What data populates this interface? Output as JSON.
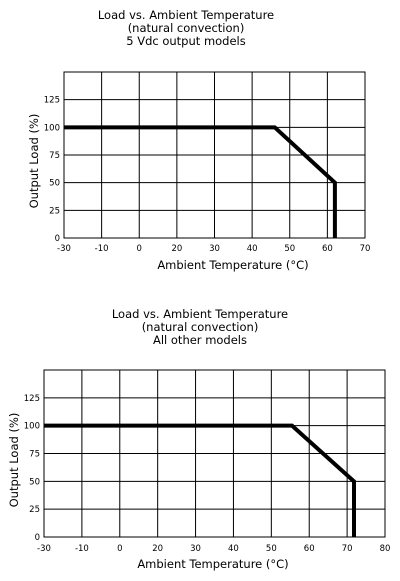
{
  "chart_data": [
    {
      "type": "line",
      "title": "Load vs. Ambient Temperature",
      "subtitle_1": "(natural convection)",
      "subtitle_2": "5 Vdc output models",
      "xlabel": "Ambient Temperature (°C)",
      "ylabel": "Output Load (%)",
      "xlim": [
        -30,
        70
      ],
      "ylim": [
        0,
        150
      ],
      "x_ticks": [
        "-30",
        "-10",
        "0",
        "20",
        "30",
        "40",
        "50",
        "60",
        "70"
      ],
      "y_ticks": [
        "0",
        "25",
        "50",
        "75",
        "100",
        "125"
      ],
      "grid": true,
      "series": [
        {
          "x": [
            -30,
            40,
            60,
            60
          ],
          "y": [
            100,
            100,
            50,
            0
          ]
        }
      ]
    },
    {
      "type": "line",
      "title": "Load vs. Ambient Temperature",
      "subtitle_1": "(natural convection)",
      "subtitle_2": "All other models",
      "xlabel": "Ambient Temperature (°C)",
      "ylabel": "Output Load (%)",
      "xlim": [
        -30,
        80
      ],
      "ylim": [
        0,
        150
      ],
      "x_ticks": [
        "-30",
        "-10",
        "0",
        "20",
        "30",
        "40",
        "50",
        "60",
        "70",
        "80"
      ],
      "y_ticks": [
        "0",
        "25",
        "50",
        "75",
        "100",
        "125"
      ],
      "grid": true,
      "series": [
        {
          "x": [
            -30,
            50,
            70,
            70
          ],
          "y": [
            100,
            100,
            50,
            0
          ]
        }
      ]
    }
  ]
}
